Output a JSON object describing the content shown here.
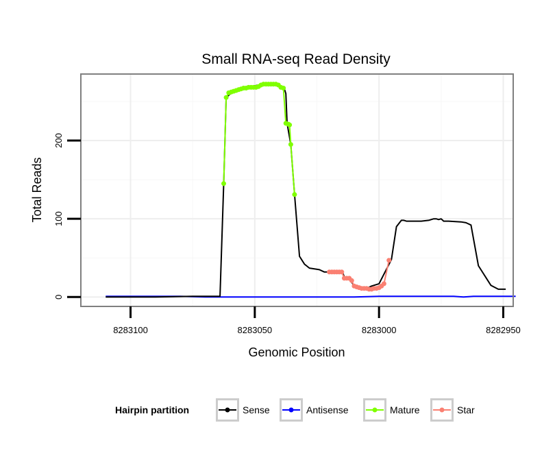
{
  "chart_data": {
    "type": "line",
    "title": "Small RNA-seq Read Density",
    "xlabel": "Genomic Position",
    "ylabel": "Total Reads",
    "xlim": [
      8283120,
      8282946
    ],
    "ylim": [
      -12,
      285
    ],
    "x_reversed": true,
    "grid": true,
    "x_ticks": [
      8283100,
      8283050,
      8283000,
      8282950
    ],
    "x_tick_labels": [
      "8283100",
      "8283050",
      "8283000",
      "8282950"
    ],
    "y_ticks": [
      0,
      100,
      200
    ],
    "y_tick_labels": [
      "0",
      "100",
      "200"
    ],
    "legend": {
      "title": "Hairpin partition",
      "position": "bottom",
      "entries": [
        {
          "name": "Sense",
          "color": "#000000"
        },
        {
          "name": "Antisense",
          "color": "#0000ff"
        },
        {
          "name": "Mature",
          "color": "#7fff00"
        },
        {
          "name": "Star",
          "color": "#fa8072"
        }
      ]
    },
    "series": [
      {
        "name": "Sense",
        "color": "#000000",
        "markers": false,
        "x": [
          8283110,
          8283090,
          8283075,
          8283070,
          8283064,
          8283062.5,
          8283061.5,
          8283059,
          8283058,
          8283055,
          8283050,
          8283045,
          8283043,
          8283041.5,
          8283040,
          8283038,
          8283037.5,
          8283037,
          8283035.5,
          8283034,
          8283032,
          8283030,
          8283028,
          8283026,
          8283024,
          8283022,
          8283021,
          8283020,
          8283018,
          8283017,
          8283015,
          8283014,
          8283012,
          8283010,
          8283009,
          8283008,
          8283007,
          8283006,
          8283005,
          8283003,
          8283000,
          8282995,
          8282993,
          8282991,
          8282990,
          8282989,
          8282987,
          8282986,
          8282985,
          8282983,
          8282980,
          8282979,
          8282978,
          8282977,
          8282976,
          8282975,
          8282974,
          8282972,
          8282967,
          8282965,
          8282963,
          8282960,
          8282955,
          8282952,
          8282950,
          8282949
        ],
        "y": [
          0,
          0,
          1,
          1,
          1,
          145,
          255,
          262,
          264,
          267,
          270,
          273,
          273,
          273,
          270,
          265,
          260,
          222,
          195,
          131,
          52,
          42,
          37,
          36,
          35,
          32,
          32,
          32,
          32,
          32,
          34,
          26,
          24,
          14,
          12,
          11,
          10,
          10,
          11,
          14,
          17,
          48,
          90,
          98,
          98,
          97,
          97,
          97,
          97,
          97,
          98,
          99,
          100,
          100,
          99,
          100,
          97,
          97,
          96,
          95,
          92,
          40,
          15,
          10,
          10,
          10
        ]
      },
      {
        "name": "Antisense",
        "color": "#0000ff",
        "markers": false,
        "x": [
          8283110,
          8283090,
          8283080,
          8283070,
          8283050,
          8283010,
          8283000,
          8282980,
          8282970,
          8282966,
          8282962,
          8282950,
          8282945
        ],
        "y": [
          1,
          1,
          1,
          0,
          0,
          0,
          1,
          1,
          1,
          0,
          1,
          1,
          1
        ]
      },
      {
        "name": "Mature",
        "color": "#7fff00",
        "markers": true,
        "x": [
          8283062.5,
          8283061.5,
          8283060.5,
          8283059.5,
          8283058.5,
          8283057.5,
          8283056.5,
          8283055.5,
          8283054.5,
          8283053.5,
          8283052.5,
          8283051.5,
          8283050.5,
          8283049.5,
          8283048.5,
          8283047.5,
          8283046.5,
          8283045.5,
          8283044.5,
          8283043.5,
          8283042.5,
          8283041.5,
          8283040.5,
          8283039.5,
          8283038.5,
          8283037.5,
          8283036.5,
          8283036,
          8283035.5,
          8283034
        ],
        "y": [
          145,
          255,
          261,
          262,
          263,
          264,
          265,
          266,
          267,
          267,
          268,
          268,
          268,
          268,
          269,
          271,
          272,
          272,
          272,
          272,
          272,
          272,
          271,
          268,
          267,
          222,
          221,
          220,
          195,
          131
        ]
      },
      {
        "name": "Star",
        "color": "#fa8072",
        "markers": true,
        "x": [
          8283020,
          8283019,
          8283018,
          8283017,
          8283016,
          8283015,
          8283014,
          8283013,
          8283012,
          8283011,
          8283010,
          8283009,
          8283008,
          8283007,
          8283006,
          8283005,
          8283004,
          8283003,
          8283002,
          8283001,
          8283000,
          8282999,
          8282998,
          8282996
        ],
        "y": [
          32,
          32,
          32,
          32,
          32,
          32,
          24,
          24,
          24,
          21,
          14,
          13,
          12,
          11,
          11,
          11,
          10,
          10,
          11,
          11,
          12,
          14,
          17,
          47
        ]
      }
    ]
  }
}
